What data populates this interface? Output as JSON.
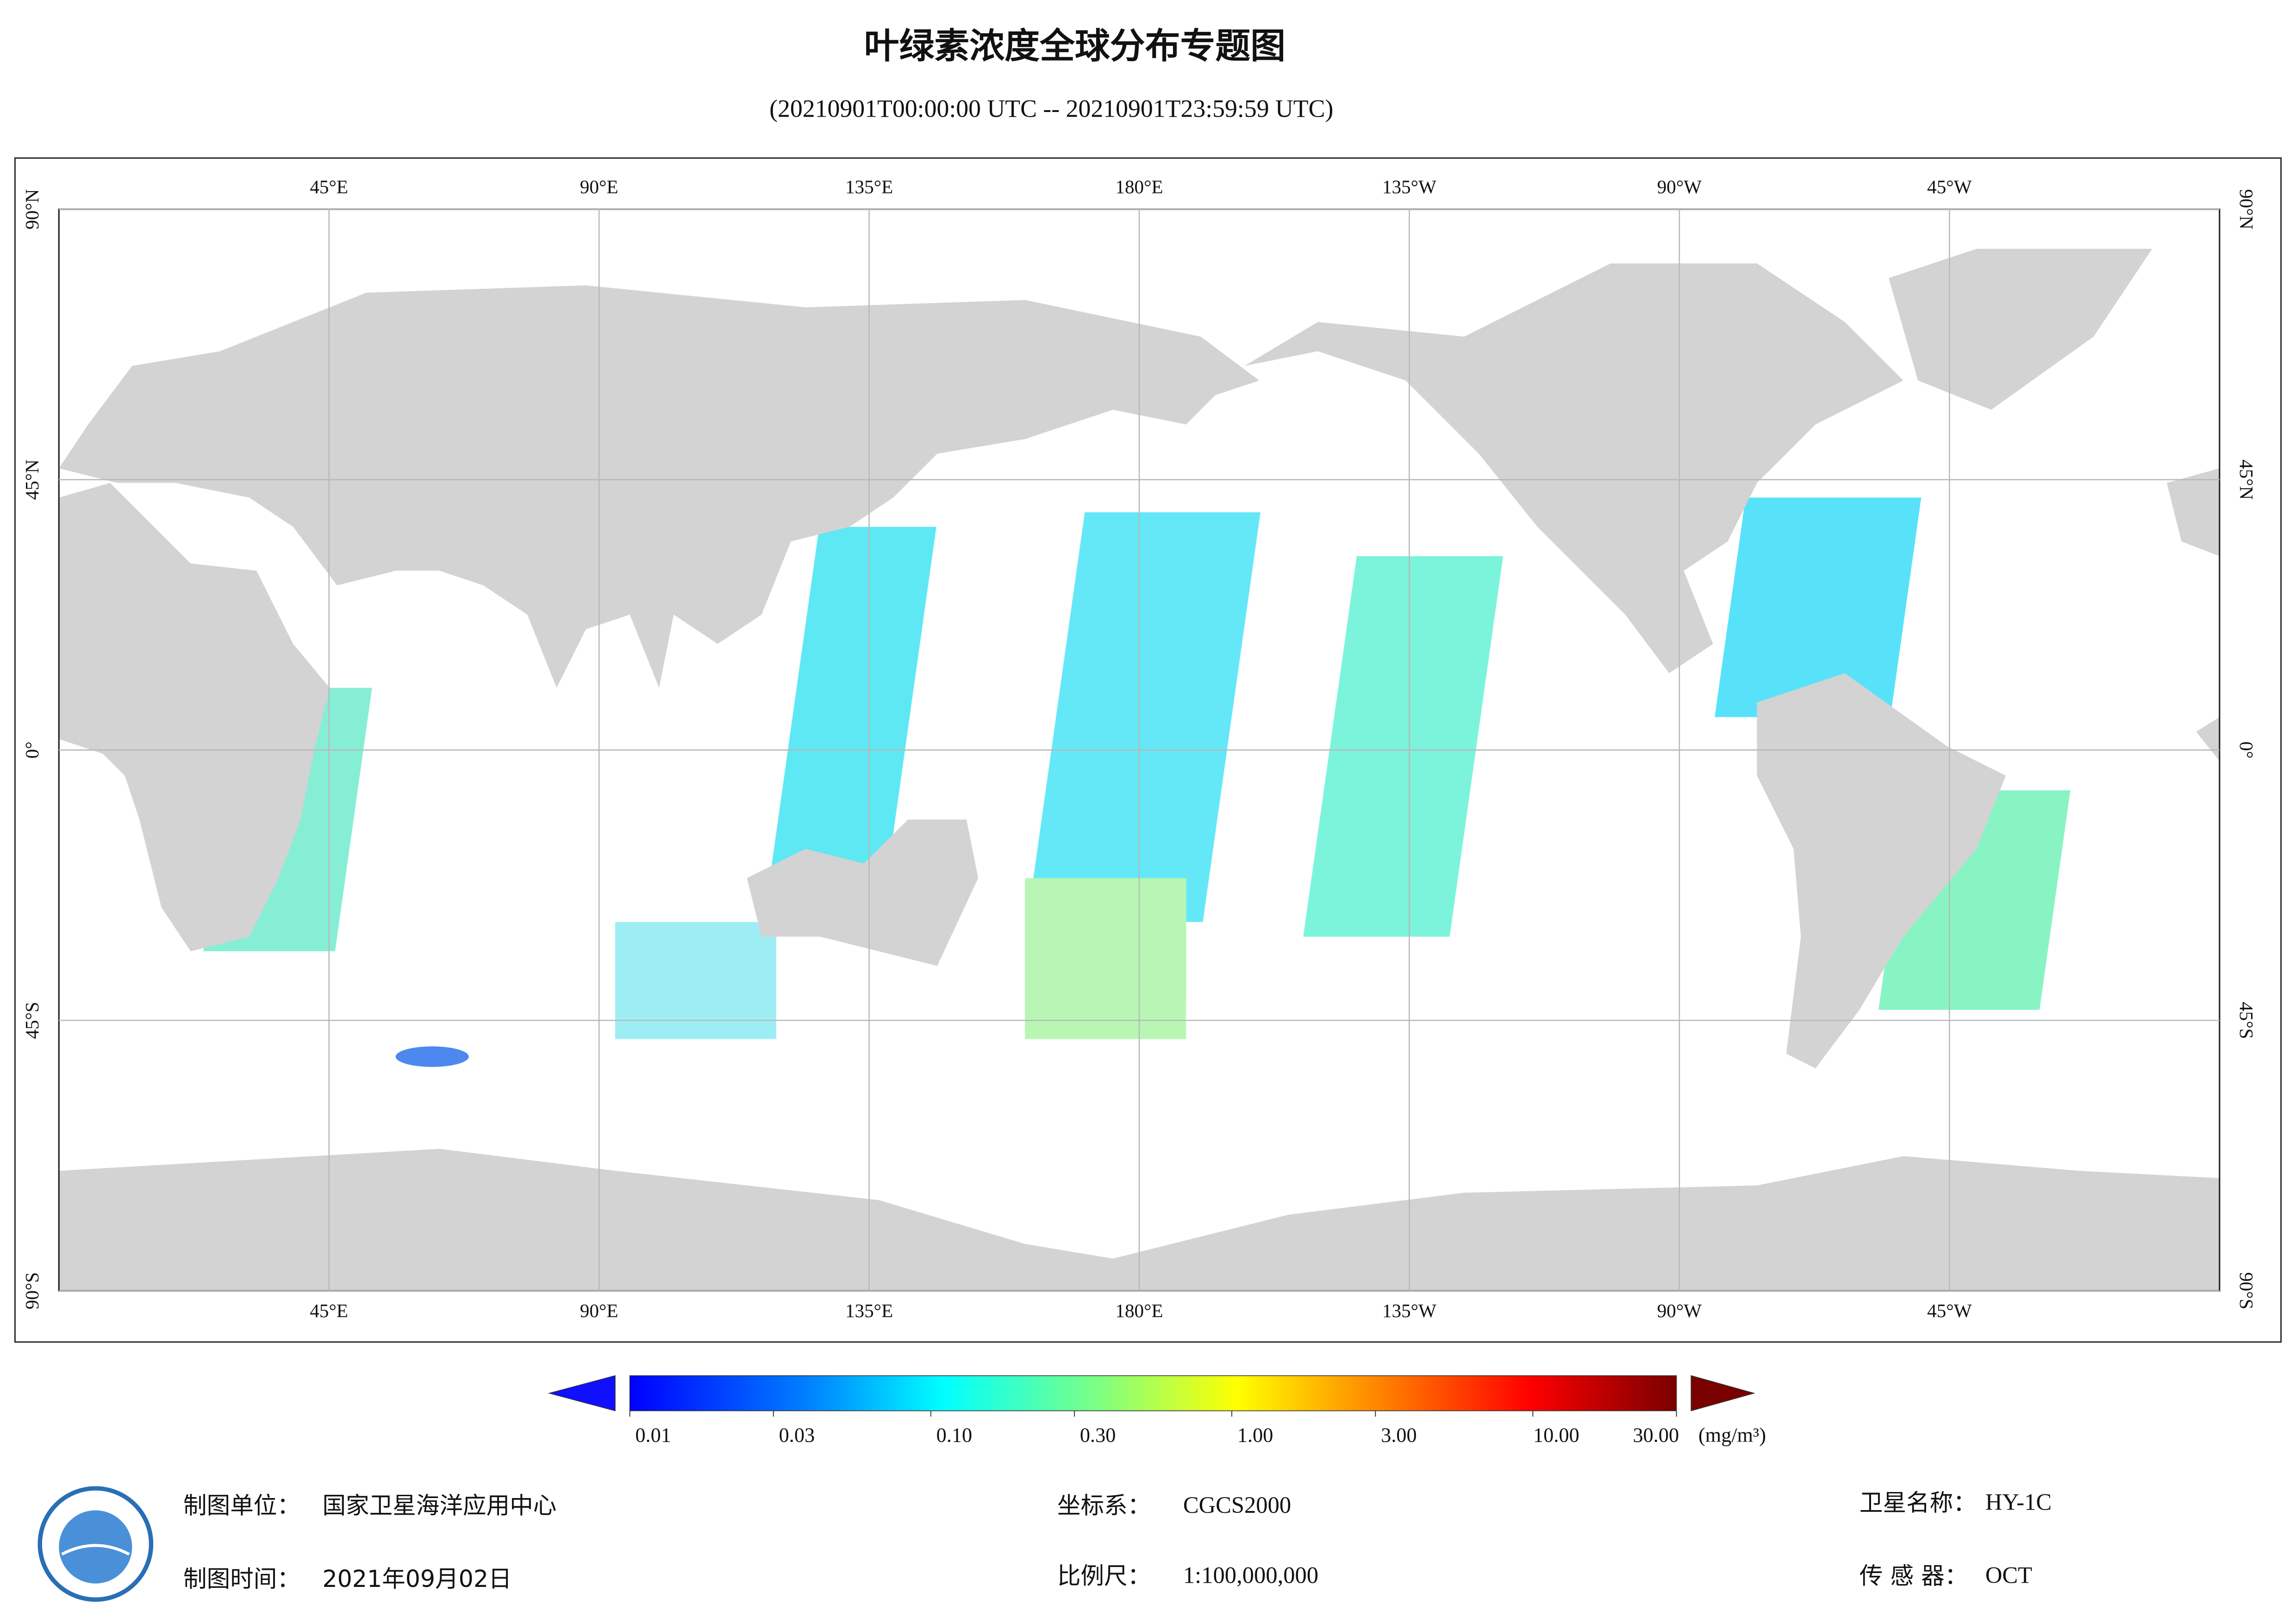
{
  "header": {
    "title": "叶绿素浓度全球分布专题图",
    "subtitle": "(20210901T00:00:00 UTC -- 20210901T23:59:59 UTC)"
  },
  "map": {
    "xlim": [
      0,
      360
    ],
    "ylim": [
      -90,
      90
    ],
    "lon_ticks": [
      {
        "value": 45,
        "label": "45°E"
      },
      {
        "value": 90,
        "label": "90°E"
      },
      {
        "value": 135,
        "label": "135°E"
      },
      {
        "value": 180,
        "label": "180°E"
      },
      {
        "value": 225,
        "label": "135°W"
      },
      {
        "value": 270,
        "label": "90°W"
      },
      {
        "value": 315,
        "label": "45°W"
      }
    ],
    "lat_ticks": [
      {
        "value": 90,
        "label": "90°N"
      },
      {
        "value": 45,
        "label": "45°N"
      },
      {
        "value": 0,
        "label": "0°"
      },
      {
        "value": -45,
        "label": "45°S"
      },
      {
        "value": -90,
        "label": "90°S"
      }
    ]
  },
  "colorbar": {
    "scale": "log",
    "range": [
      0.01,
      30
    ],
    "unit": "(mg/m³)",
    "ticks": [
      {
        "value": 0.01,
        "label": "0.01"
      },
      {
        "value": 0.03,
        "label": "0.03"
      },
      {
        "value": 0.1,
        "label": "0.10"
      },
      {
        "value": 0.3,
        "label": "0.30"
      },
      {
        "value": 1,
        "label": "1.00"
      },
      {
        "value": 3,
        "label": "3.00"
      },
      {
        "value": 10,
        "label": "10.00"
      },
      {
        "value": 30,
        "label": "30.00"
      }
    ]
  },
  "footer": [
    {
      "label": "制图单位：",
      "value": "国家卫星海洋应用中心"
    },
    {
      "label": "制图时间：",
      "value": "2021年09月02日"
    },
    {
      "label": "坐标系：",
      "value": "CGCS2000"
    },
    {
      "label": "比例尺：",
      "value": "1:100,000,000"
    },
    {
      "label": "卫星名称：",
      "value": "HY-1C"
    },
    {
      "label": "传 感 器：",
      "value": "OCT"
    }
  ]
}
